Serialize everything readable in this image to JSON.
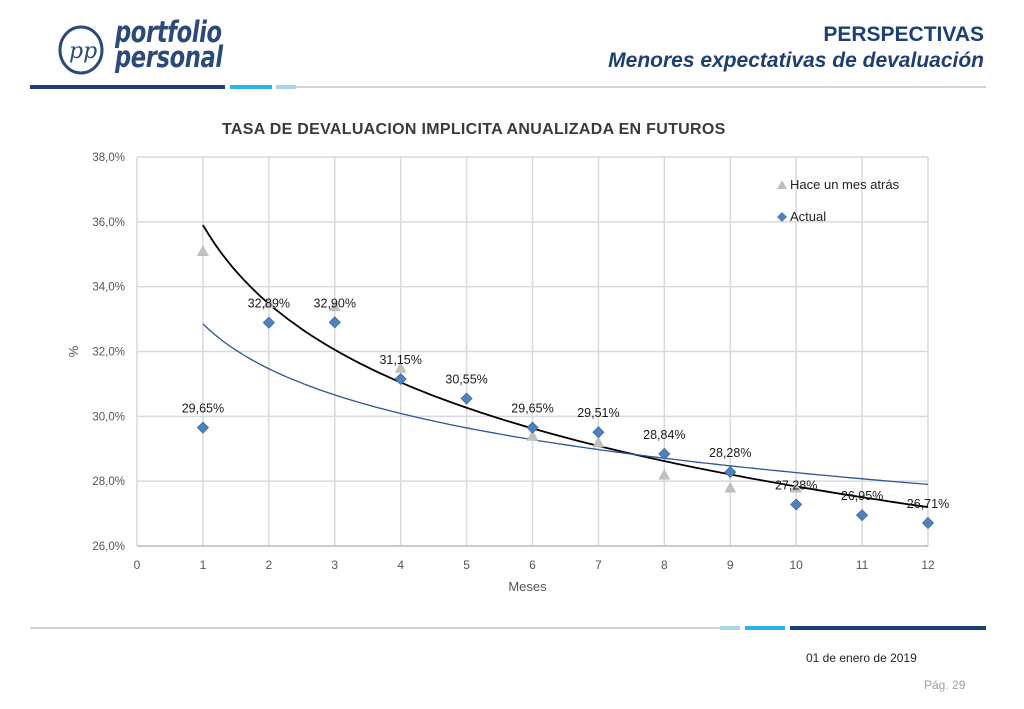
{
  "header": {
    "logo_line1": "portfolio",
    "logo_line2": "personal",
    "logo_mark": "pp",
    "title": "PERSPECTIVAS",
    "subtitle": "Menores expectativas de devaluación"
  },
  "colors": {
    "brand_dark": "#1e3f75",
    "brand_light": "#29b3e6",
    "brand_pale": "#a9d4ea",
    "series_actual": "#4f81bd",
    "series_prev": "#c0c0c0",
    "trend_black": "#000000",
    "trend_blue": "#2e5596"
  },
  "chart_data": {
    "type": "scatter",
    "title": "TASA DE DEVALUACION IMPLICITA ANUALIZADA EN FUTUROS",
    "xlabel": "Meses",
    "ylabel": "%",
    "xlim": [
      0,
      12
    ],
    "ylim": [
      26,
      38
    ],
    "x_ticks": [
      "0",
      "1",
      "2",
      "3",
      "4",
      "5",
      "6",
      "7",
      "8",
      "9",
      "10",
      "11",
      "12"
    ],
    "y_ticks": [
      "26,0%",
      "28,0%",
      "30,0%",
      "32,0%",
      "34,0%",
      "36,0%",
      "38,0%"
    ],
    "grid": true,
    "legend_position": "top-right",
    "series": [
      {
        "name": "Hace un mes atrás",
        "marker": "triangle",
        "x": [
          1,
          2,
          3,
          4,
          6,
          7,
          8,
          9,
          10
        ],
        "y": [
          35.1,
          33.5,
          33.4,
          31.5,
          29.4,
          29.2,
          28.2,
          27.8,
          27.8
        ]
      },
      {
        "name": "Actual",
        "marker": "diamond",
        "x": [
          1,
          2,
          3,
          4,
          5,
          6,
          7,
          8,
          9,
          10,
          11,
          12
        ],
        "y": [
          29.65,
          32.89,
          32.9,
          31.15,
          30.55,
          29.65,
          29.51,
          28.84,
          28.28,
          27.28,
          26.95,
          26.71
        ],
        "labels": [
          "29,65%",
          "32,89%",
          "32,90%",
          "31,15%",
          "30,55%",
          "29,65%",
          "29,51%",
          "28,84%",
          "28,28%",
          "27,28%",
          "26,95%",
          "26,71%"
        ]
      }
    ],
    "trendlines": [
      {
        "style": "black",
        "from_x": 1,
        "to_x": 12,
        "y_start": 35.9,
        "y_end": 27.2,
        "shape": "log"
      },
      {
        "style": "blue",
        "from_x": 1,
        "to_x": 12,
        "y_start": 32.85,
        "y_end": 27.9,
        "shape": "log"
      }
    ]
  },
  "footer": {
    "date": "01 de enero de 2019",
    "page": "Pág. 29"
  }
}
